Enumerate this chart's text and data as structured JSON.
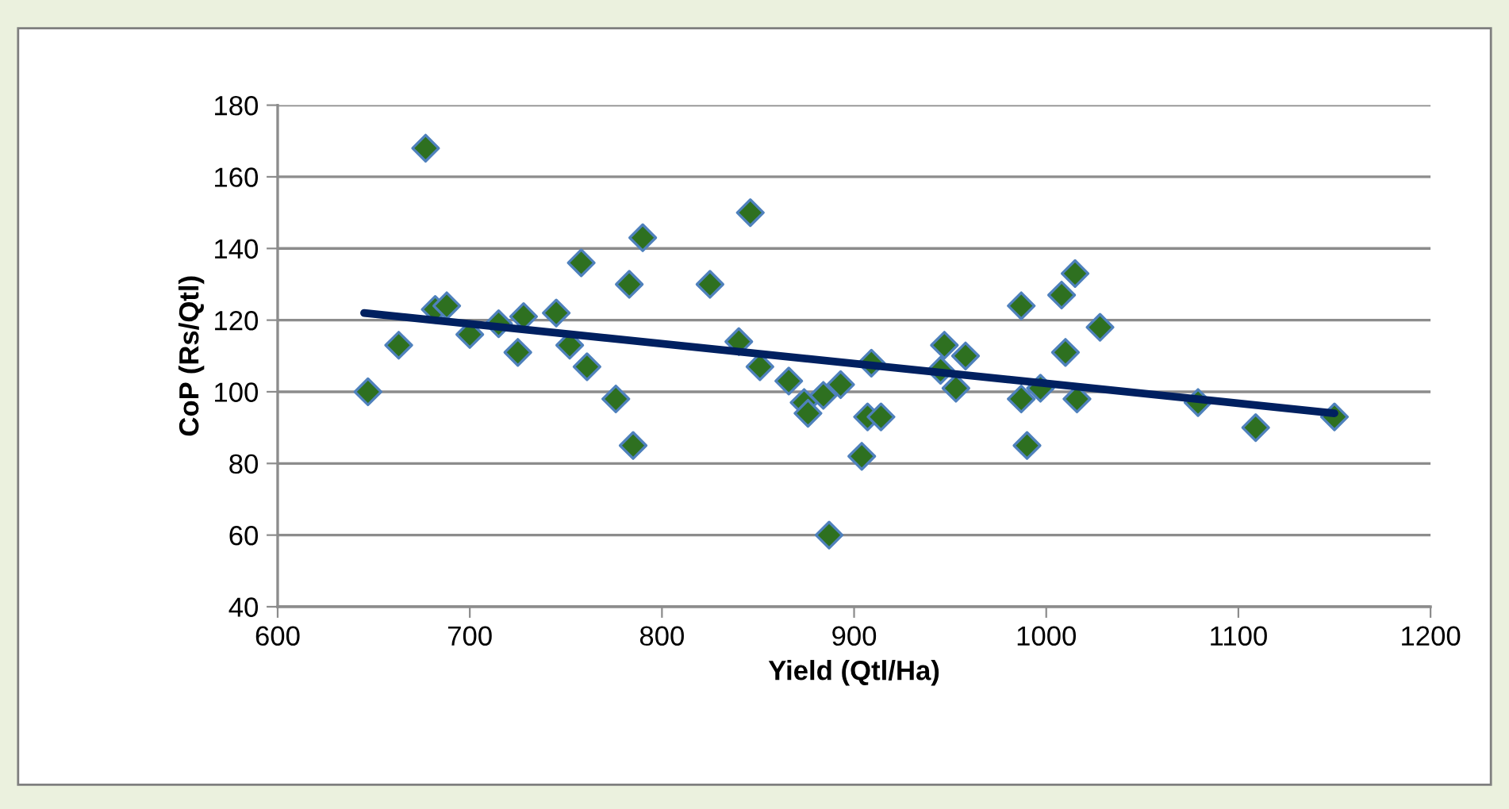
{
  "chart_data": {
    "type": "scatter",
    "xlabel": "Yield (Qtl/Ha)",
    "ylabel": "CoP (Rs/Qtl)",
    "xlim": [
      600,
      1200
    ],
    "xticks": [
      600,
      700,
      800,
      900,
      1000,
      1100,
      1200
    ],
    "ylim": [
      40,
      180
    ],
    "yticks": [
      40,
      60,
      80,
      100,
      120,
      140,
      160,
      180
    ],
    "grid": "y",
    "legend": false,
    "series": [
      {
        "marker": "diamond",
        "color": "#2e7020",
        "x": [
          647,
          663,
          677,
          682,
          688,
          700,
          715,
          725,
          728,
          745,
          752,
          758,
          761,
          776,
          783,
          785,
          790,
          825,
          840,
          846,
          851,
          866,
          874,
          876,
          884,
          887,
          893,
          904,
          907,
          909,
          914,
          945,
          947,
          953,
          958,
          987,
          987,
          990,
          997,
          1008,
          1010,
          1015,
          1016,
          1028,
          1079,
          1109,
          1150
        ],
        "values": [
          100,
          113,
          168,
          123,
          124,
          116,
          119,
          111,
          121,
          122,
          113,
          136,
          107,
          98,
          130,
          85,
          143,
          130,
          114,
          150,
          107,
          103,
          97,
          94,
          99,
          60,
          102,
          82,
          93,
          108,
          93,
          106,
          113,
          101,
          110,
          124,
          98,
          85,
          101,
          127,
          111,
          133,
          98,
          118,
          97,
          90,
          93
        ]
      },
      {
        "type": "line",
        "color": "#002060",
        "x": [
          645,
          1150
        ],
        "values": [
          122,
          94
        ]
      }
    ]
  }
}
